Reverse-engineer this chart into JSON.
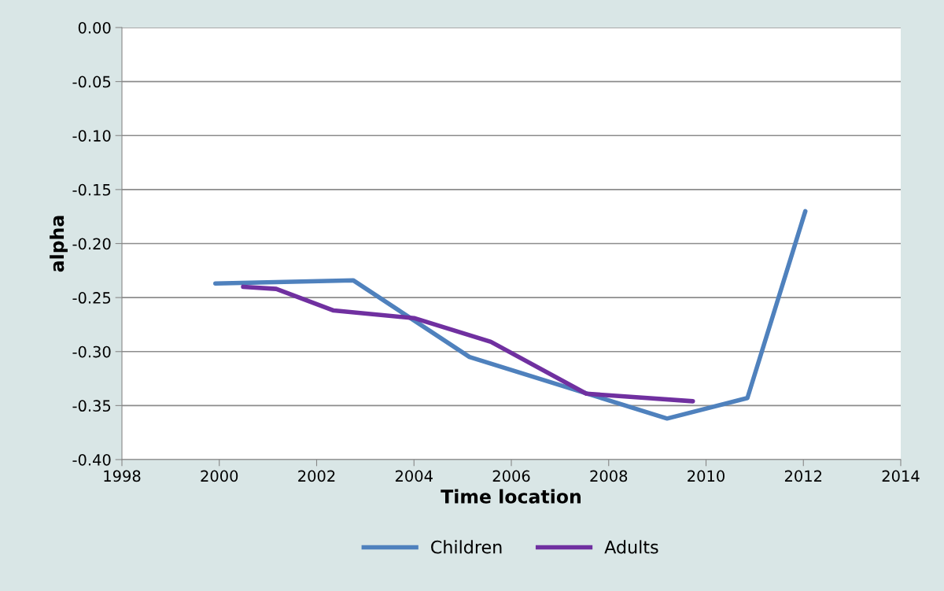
{
  "chart_data": {
    "type": "line",
    "xlabel": "Time location",
    "ylabel": "alpha",
    "series": [
      {
        "name": "Children",
        "color": "#4f81bd",
        "x": [
          1999.92,
          2002.75,
          2005.14,
          2009.2,
          2010.85,
          2012.04
        ],
        "values": [
          -0.237,
          -0.234,
          -0.305,
          -0.362,
          -0.343,
          -0.17
        ]
      },
      {
        "name": "Adults",
        "color": "#7030a0",
        "x": [
          2000.49,
          2001.17,
          2002.35,
          2004.0,
          2005.58,
          2007.54,
          2009.73
        ],
        "values": [
          -0.24,
          -0.242,
          -0.262,
          -0.269,
          -0.291,
          -0.339,
          -0.346
        ]
      }
    ],
    "xlim": [
      1998,
      2014
    ],
    "xticks": [
      1998,
      2000,
      2002,
      2004,
      2006,
      2008,
      2010,
      2012,
      2014
    ],
    "ylim": [
      -0.4,
      0.0
    ],
    "yticks": [
      {
        "value": -0.4,
        "label": "-0.40"
      },
      {
        "value": -0.35,
        "label": "-0.35"
      },
      {
        "value": -0.3,
        "label": "-0.30"
      },
      {
        "value": -0.25,
        "label": "-0.25"
      },
      {
        "value": -0.2,
        "label": "-0.20"
      },
      {
        "value": -0.15,
        "label": "-0.15"
      },
      {
        "value": -0.1,
        "label": "-0.10"
      },
      {
        "value": -0.05,
        "label": "-0.05"
      },
      {
        "value": 0.0,
        "label": "0.00"
      }
    ],
    "grid": "y",
    "legend": "bottom",
    "marker": "none",
    "line_style": "solid"
  }
}
